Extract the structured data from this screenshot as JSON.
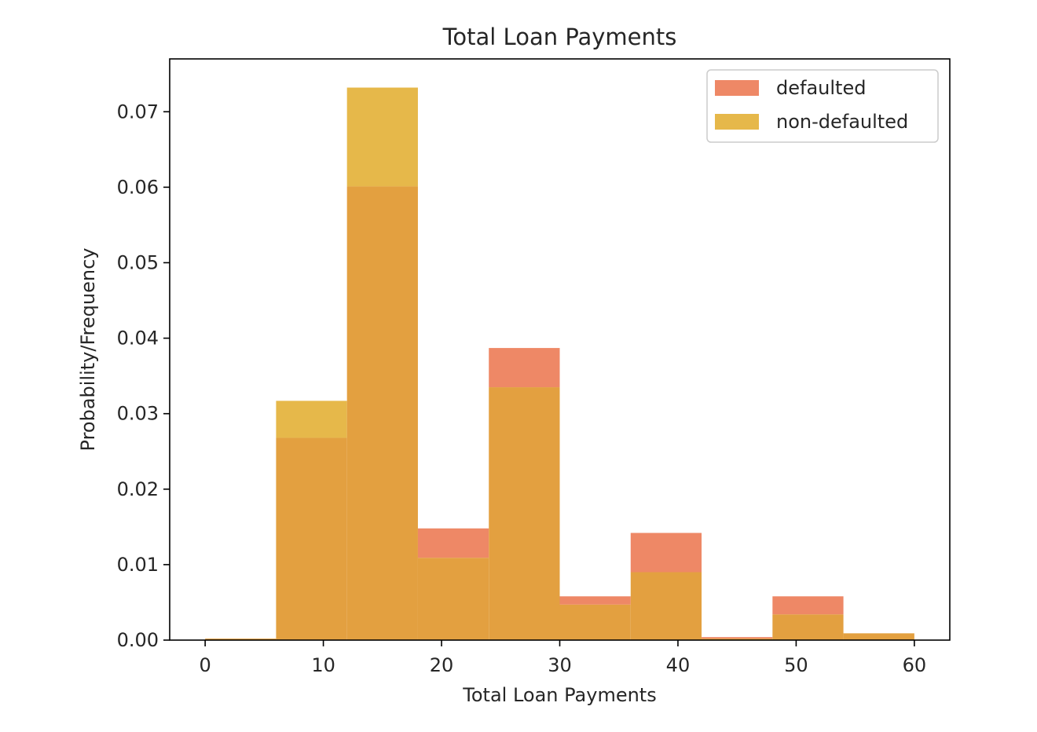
{
  "chart_data": {
    "type": "bar",
    "subtype": "overlapping-histogram",
    "title": "Total Loan Payments",
    "xlabel": "Total Loan Payments",
    "ylabel": "Probability/Frequency",
    "xlim": [
      -3,
      63
    ],
    "ylim": [
      0,
      0.077
    ],
    "xticks": [
      0,
      10,
      20,
      30,
      40,
      50,
      60
    ],
    "yticks": [
      0.0,
      0.01,
      0.02,
      0.03,
      0.04,
      0.05,
      0.06,
      0.07
    ],
    "xtick_labels": [
      "0",
      "10",
      "20",
      "30",
      "40",
      "50",
      "60"
    ],
    "ytick_labels": [
      "0.00",
      "0.01",
      "0.02",
      "0.03",
      "0.04",
      "0.05",
      "0.06",
      "0.07"
    ],
    "bin_edges": [
      0,
      6,
      12,
      18,
      24,
      30,
      36,
      42,
      48,
      54,
      60
    ],
    "series": [
      {
        "name": "defaulted",
        "color": "#ee8866",
        "values": [
          0.0002,
          0.0268,
          0.0601,
          0.0148,
          0.0387,
          0.0058,
          0.0142,
          0.0004,
          0.0058,
          0.0009
        ]
      },
      {
        "name": "non-defaulted",
        "color": "#e6b84a",
        "values": [
          0.0002,
          0.0317,
          0.0732,
          0.0109,
          0.0335,
          0.0047,
          0.009,
          0.0002,
          0.0034,
          0.0009
        ]
      }
    ],
    "overlap_color": "#e3a040",
    "grid": false,
    "legend": {
      "placement": "top-right",
      "entries": [
        "defaulted",
        "non-defaulted"
      ]
    }
  }
}
